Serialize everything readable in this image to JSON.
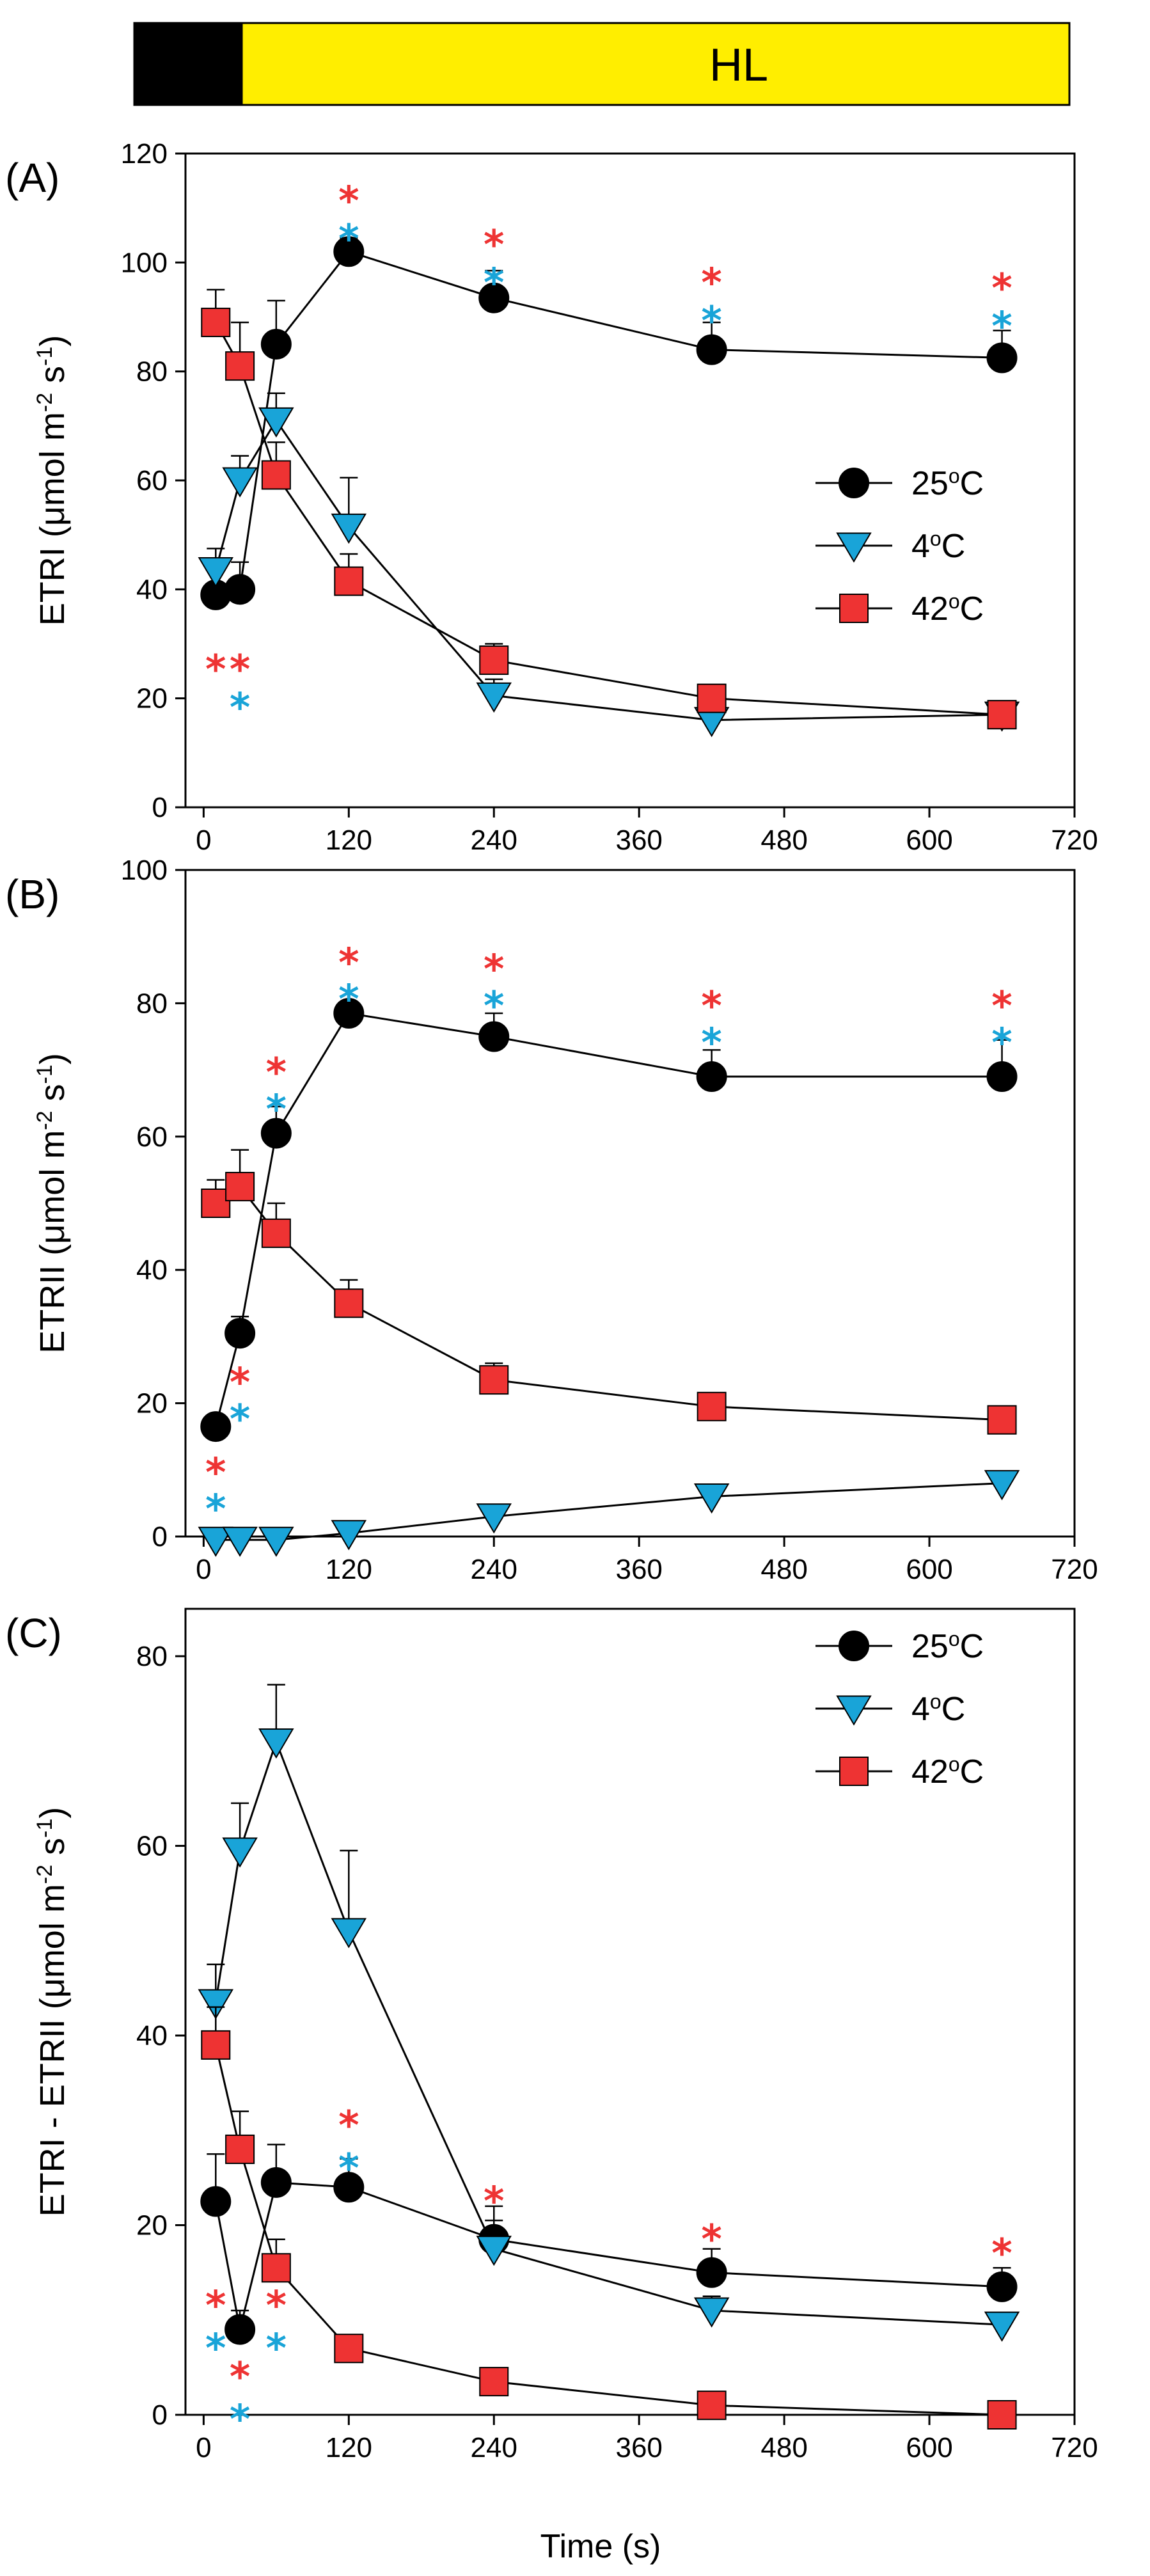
{
  "treatment_bar": {
    "dark_color": "#000000",
    "light_color": "#ffee00",
    "label": "HL"
  },
  "x_label": "Time (s)",
  "colors": {
    "c25": "#000000",
    "c4": "#19a4d8",
    "c42": "#ee3333",
    "star_red": "#ee3333",
    "star_blue": "#19a4d8"
  },
  "chart_data": [
    {
      "type": "line",
      "panel_label": "(A)",
      "ylabel_main": "ETRI (μmol m",
      "ylabel_sup1": "-2",
      "ylabel_mid": " s",
      "ylabel_sup2": "-1",
      "ylabel_end": ")",
      "xlim": [
        -15,
        720
      ],
      "ylim": [
        0,
        120
      ],
      "xticks": [
        "0",
        "120",
        "240",
        "360",
        "480",
        "600",
        "720"
      ],
      "yticks": [
        "0",
        "20",
        "40",
        "60",
        "80",
        "100",
        "120"
      ],
      "legend_position": "right",
      "series": [
        {
          "name": "25",
          "unit": "oC",
          "marker": "circle",
          "x": [
            10,
            30,
            60,
            120,
            240,
            420,
            660
          ],
          "y": [
            39,
            40,
            85,
            102,
            93.5,
            84,
            82.5
          ],
          "err": [
            6,
            5,
            8,
            2.5,
            5,
            5,
            5
          ]
        },
        {
          "name": "4",
          "unit": "oC",
          "marker": "triangle",
          "x": [
            10,
            30,
            60,
            120,
            240,
            420,
            660
          ],
          "y": [
            43.5,
            60,
            71,
            51.5,
            20.5,
            16,
            17
          ],
          "err": [
            4,
            4.5,
            5,
            9,
            3,
            2,
            2
          ]
        },
        {
          "name": "42",
          "unit": "oC",
          "marker": "square",
          "x": [
            10,
            30,
            60,
            120,
            240,
            420,
            660
          ],
          "y": [
            89,
            81,
            61,
            41.5,
            27,
            20,
            17
          ],
          "err": [
            6,
            8,
            6,
            5,
            3,
            2,
            1.5
          ]
        }
      ],
      "significance": [
        {
          "x": 10,
          "y": 27,
          "color": "red"
        },
        {
          "x": 30,
          "y": 27,
          "color": "red"
        },
        {
          "x": 30,
          "y": 20,
          "color": "blue"
        },
        {
          "x": 120,
          "y": 113,
          "color": "red"
        },
        {
          "x": 120,
          "y": 106,
          "color": "blue"
        },
        {
          "x": 240,
          "y": 105,
          "color": "red"
        },
        {
          "x": 240,
          "y": 98,
          "color": "blue"
        },
        {
          "x": 420,
          "y": 98,
          "color": "red"
        },
        {
          "x": 420,
          "y": 91,
          "color": "blue"
        },
        {
          "x": 660,
          "y": 97,
          "color": "red"
        },
        {
          "x": 660,
          "y": 90,
          "color": "blue"
        }
      ]
    },
    {
      "type": "line",
      "panel_label": "(B)",
      "ylabel_main": "ETRII (μmol m",
      "ylabel_sup1": "-2",
      "ylabel_mid": " s",
      "ylabel_sup2": "-1",
      "ylabel_end": ")",
      "xlim": [
        -15,
        720
      ],
      "ylim": [
        0,
        100
      ],
      "xticks": [
        "0",
        "120",
        "240",
        "360",
        "480",
        "600",
        "720"
      ],
      "yticks": [
        "0",
        "20",
        "40",
        "60",
        "80",
        "100"
      ],
      "legend_position": "none",
      "series": [
        {
          "name": "25",
          "unit": "oC",
          "marker": "circle",
          "x": [
            10,
            30,
            60,
            120,
            240,
            420,
            660
          ],
          "y": [
            16.5,
            30.5,
            60.5,
            78.5,
            75,
            69,
            69
          ],
          "err": [
            1,
            2.5,
            4,
            1.5,
            3.5,
            4,
            5.5
          ]
        },
        {
          "name": "4",
          "unit": "oC",
          "marker": "triangle",
          "x": [
            10,
            30,
            60,
            120,
            240,
            420,
            660
          ],
          "y": [
            -0.5,
            -0.5,
            -0.5,
            0.5,
            3,
            6,
            8
          ],
          "err": [
            0,
            0,
            0,
            0,
            0,
            0,
            0
          ]
        },
        {
          "name": "42",
          "unit": "oC",
          "marker": "square",
          "x": [
            10,
            30,
            60,
            120,
            240,
            420,
            660
          ],
          "y": [
            50,
            52.5,
            45.5,
            35,
            23.5,
            19.5,
            17.5
          ],
          "err": [
            3.5,
            5.5,
            4.5,
            3.5,
            2.5,
            1,
            1
          ]
        }
      ],
      "significance": [
        {
          "x": 10,
          "y": 11,
          "color": "red"
        },
        {
          "x": 10,
          "y": 5.5,
          "color": "blue"
        },
        {
          "x": 30,
          "y": 24.5,
          "color": "red"
        },
        {
          "x": 30,
          "y": 19,
          "color": "blue"
        },
        {
          "x": 60,
          "y": 71,
          "color": "red"
        },
        {
          "x": 60,
          "y": 65.5,
          "color": "blue"
        },
        {
          "x": 120,
          "y": 87.5,
          "color": "red"
        },
        {
          "x": 120,
          "y": 82,
          "color": "blue"
        },
        {
          "x": 240,
          "y": 86.5,
          "color": "red"
        },
        {
          "x": 240,
          "y": 81,
          "color": "blue"
        },
        {
          "x": 420,
          "y": 81,
          "color": "red"
        },
        {
          "x": 420,
          "y": 75.5,
          "color": "blue"
        },
        {
          "x": 660,
          "y": 81,
          "color": "red"
        },
        {
          "x": 660,
          "y": 75.5,
          "color": "blue"
        }
      ]
    },
    {
      "type": "line",
      "panel_label": "(C)",
      "ylabel_main": "ETRI - ETRII (μmol m",
      "ylabel_sup1": "-2",
      "ylabel_mid": " s",
      "ylabel_sup2": "-1",
      "ylabel_end": ")",
      "xlim": [
        -15,
        720
      ],
      "ylim": [
        0,
        85
      ],
      "xticks": [
        "0",
        "120",
        "240",
        "360",
        "480",
        "600",
        "720"
      ],
      "yticks": [
        "0",
        "20",
        "40",
        "60",
        "80"
      ],
      "legend_position": "top-right",
      "series": [
        {
          "name": "25",
          "unit": "oC",
          "marker": "circle",
          "x": [
            10,
            30,
            60,
            120,
            240,
            420,
            660
          ],
          "y": [
            22.5,
            9,
            24.5,
            24,
            18.5,
            15,
            13.5
          ],
          "err": [
            5,
            2,
            4,
            3,
            3.5,
            2.5,
            2
          ]
        },
        {
          "name": "4",
          "unit": "oC",
          "marker": "triangle",
          "x": [
            10,
            30,
            60,
            120,
            240,
            420,
            660
          ],
          "y": [
            43.5,
            59.5,
            71,
            51,
            17.5,
            11,
            9.5
          ],
          "err": [
            4,
            5,
            6,
            8.5,
            3,
            1.5,
            1
          ]
        },
        {
          "name": "42",
          "unit": "oC",
          "marker": "square",
          "x": [
            10,
            30,
            60,
            120,
            240,
            420,
            660
          ],
          "y": [
            39,
            28,
            15.5,
            7,
            3.5,
            1,
            0
          ],
          "err": [
            4,
            4,
            3,
            1,
            1,
            0.5,
            0.5
          ]
        }
      ],
      "significance": [
        {
          "x": 10,
          "y": 12.5,
          "color": "red"
        },
        {
          "x": 10,
          "y": 8,
          "color": "blue"
        },
        {
          "x": 30,
          "y": 5,
          "color": "red"
        },
        {
          "x": 30,
          "y": 0.5,
          "color": "blue"
        },
        {
          "x": 60,
          "y": 12.5,
          "color": "red"
        },
        {
          "x": 60,
          "y": 8,
          "color": "blue"
        },
        {
          "x": 120,
          "y": 31.5,
          "color": "red"
        },
        {
          "x": 120,
          "y": 27,
          "color": "blue"
        },
        {
          "x": 240,
          "y": 23.5,
          "color": "red"
        },
        {
          "x": 420,
          "y": 19.5,
          "color": "red"
        },
        {
          "x": 660,
          "y": 18,
          "color": "red"
        }
      ]
    }
  ]
}
